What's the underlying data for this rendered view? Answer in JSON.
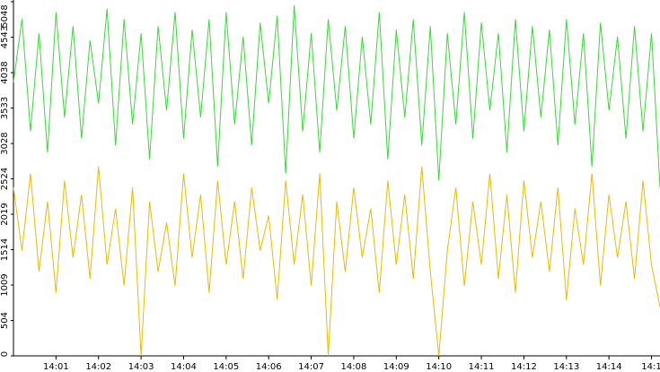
{
  "chart_data": {
    "type": "line",
    "x": [
      0,
      0.2,
      0.4,
      0.6,
      0.8,
      1,
      1.2,
      1.4,
      1.6,
      1.8,
      2,
      2.2,
      2.4,
      2.6,
      2.8,
      3,
      3.2,
      3.4,
      3.6,
      3.8,
      4,
      4.2,
      4.4,
      4.6,
      4.8,
      5,
      5.2,
      5.4,
      5.6,
      5.8,
      6,
      6.2,
      6.4,
      6.6,
      6.8,
      7,
      7.2,
      7.4,
      7.6,
      7.8,
      8,
      8.2,
      8.4,
      8.6,
      8.8,
      9,
      9.2,
      9.4,
      9.6,
      9.8,
      10,
      10.2,
      10.4,
      10.6,
      10.8,
      11,
      11.2,
      11.4,
      11.6,
      11.8,
      12,
      12.2,
      12.4,
      12.6,
      12.8,
      13,
      13.2,
      13.4,
      13.6,
      13.8,
      14,
      14.2,
      14.4,
      14.6,
      14.8,
      15,
      15.2
    ],
    "series": [
      {
        "color": "#33dd33",
        "values": [
          3900,
          4800,
          3200,
          4600,
          2900,
          4900,
          3400,
          4700,
          3100,
          4500,
          3600,
          4950,
          3000,
          4800,
          3300,
          4600,
          2800,
          4700,
          3500,
          4900,
          3100,
          4650,
          3400,
          4800,
          2700,
          4900,
          3300,
          4550,
          3000,
          4750,
          3600,
          4850,
          2600,
          5000,
          3200,
          4600,
          2900,
          4800,
          3500,
          4700,
          3100,
          4550,
          3300,
          4900,
          2800,
          4650,
          3400,
          4800,
          3000,
          4700,
          2500,
          4600,
          3300,
          4900,
          3100,
          4750,
          3500,
          4600,
          2900,
          4800,
          3200,
          4700,
          3400,
          4650,
          3000,
          4800,
          3300,
          4600,
          2700,
          4750,
          3500,
          4550,
          3100,
          4700,
          3200,
          4600,
          2400
        ]
      },
      {
        "color": "#f0b800",
        "values": [
          2400,
          1500,
          2600,
          1200,
          2200,
          900,
          2500,
          1400,
          2300,
          1100,
          2700,
          1300,
          2100,
          1000,
          2400,
          0,
          2200,
          1200,
          1900,
          1000,
          2600,
          1400,
          2300,
          900,
          2500,
          1300,
          2200,
          1100,
          2400,
          1500,
          2000,
          800,
          2500,
          1300,
          2300,
          1000,
          2600,
          0,
          2200,
          1200,
          2400,
          1400,
          2100,
          900,
          2500,
          1300,
          2300,
          1100,
          2700,
          1200,
          0,
          1500,
          2400,
          1000,
          2200,
          1300,
          2600,
          1100,
          2300,
          900,
          2500,
          1400,
          2200,
          1200,
          2400,
          800,
          2100,
          1300,
          2600,
          1000,
          2300,
          1400,
          2200,
          1100,
          2500,
          1300,
          700
        ]
      }
    ],
    "xlim": [
      0,
      15.2
    ],
    "xticks": [
      {
        "value": 1,
        "label": "14:01"
      },
      {
        "value": 2,
        "label": "14:02"
      },
      {
        "value": 3,
        "label": "14:03"
      },
      {
        "value": 4,
        "label": "14:04"
      },
      {
        "value": 5,
        "label": "14:05"
      },
      {
        "value": 6,
        "label": "14:06"
      },
      {
        "value": 7,
        "label": "14:07"
      },
      {
        "value": 8,
        "label": "14:08"
      },
      {
        "value": 9,
        "label": "14:09"
      },
      {
        "value": 10,
        "label": "14:10"
      },
      {
        "value": 11,
        "label": "14:11"
      },
      {
        "value": 12,
        "label": "14:12"
      },
      {
        "value": 13,
        "label": "14:13"
      },
      {
        "value": 14,
        "label": "14:14"
      },
      {
        "value": 15,
        "label": "14:1"
      }
    ],
    "ylim": [
      0,
      5048
    ],
    "yticks": [
      0,
      504,
      1009,
      1514,
      2019,
      2524,
      3028,
      3533,
      4038,
      4543,
      5048
    ]
  }
}
